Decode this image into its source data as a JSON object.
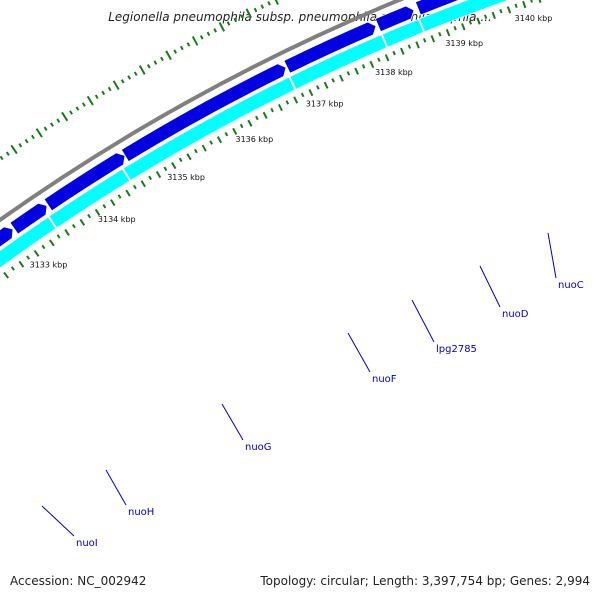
{
  "title": "Legionella pneumophila subsp. pneumophila str. Philadelphia ...",
  "footer": {
    "accession": "Accession: NC_002942",
    "summary": "Topology: circular; Length: 3,397,754 bp; Genes: 2,994"
  },
  "colors": {
    "forward_strand": "#0000e0",
    "reverse_strand": "#00ffff",
    "backbone": "#808080",
    "gc_ticks": "#1a7a1a",
    "gene_label": "#0000cc",
    "tick_label": "#111111"
  },
  "ticks": [
    {
      "label": "3133 kbp"
    },
    {
      "label": "3134 kbp"
    },
    {
      "label": "3135 kbp"
    },
    {
      "label": "3136 kbp"
    },
    {
      "label": "3137 kbp"
    },
    {
      "label": "3138 kbp"
    },
    {
      "label": "3139 kbp"
    },
    {
      "label": "3140 kbp"
    }
  ],
  "genes": [
    {
      "name": "nuoI"
    },
    {
      "name": "nuoH"
    },
    {
      "name": "nuoG"
    },
    {
      "name": "nuoF"
    },
    {
      "name": "lpg2785"
    },
    {
      "name": "nuoD"
    },
    {
      "name": "nuoC"
    }
  ]
}
